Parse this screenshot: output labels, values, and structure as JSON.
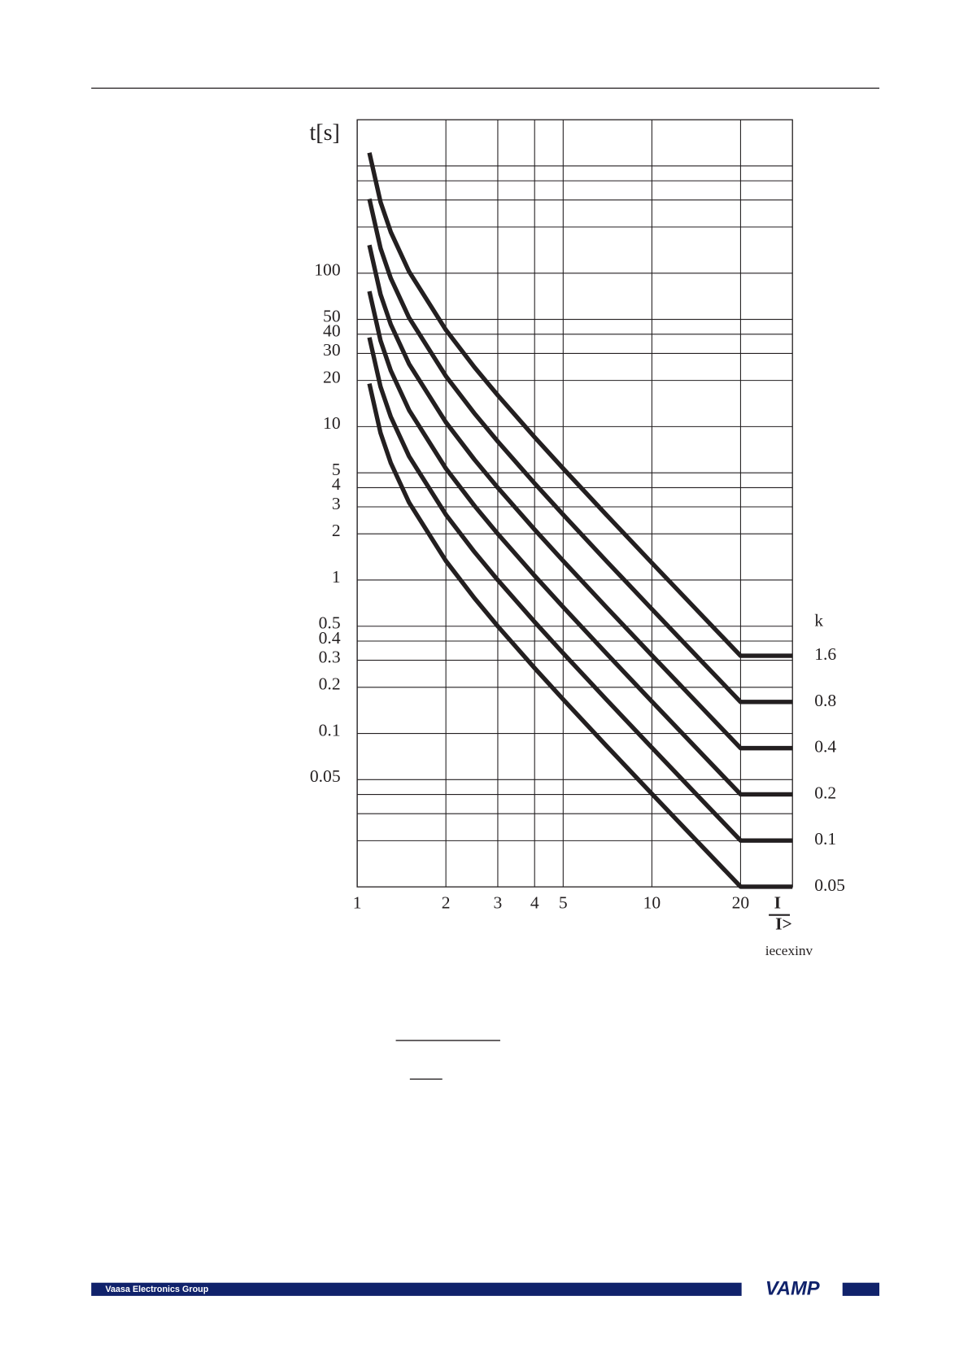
{
  "chart_data": {
    "type": "line",
    "y_label": "t[s]",
    "x_label": {
      "numerator": "I",
      "denominator": "I>"
    },
    "legend_title": "k",
    "figure_label": "iecexinv",
    "log_x": true,
    "log_y": true,
    "grid": true,
    "xlim": [
      1,
      30
    ],
    "ylim": [
      0.01,
      1000
    ],
    "xticks": [
      1,
      2,
      3,
      4,
      5,
      10,
      20
    ],
    "yticks": [
      100,
      50,
      40,
      30,
      20,
      10,
      5,
      4,
      3,
      2,
      1,
      0.5,
      0.4,
      0.3,
      0.2,
      0.1,
      0.05
    ],
    "y_minor_grid": [
      500,
      400,
      300,
      200,
      0.04,
      0.03,
      0.02
    ],
    "x": [
      1.1,
      1.2,
      1.3,
      1.5,
      2,
      2.5,
      3,
      4,
      5,
      7,
      10,
      15,
      20,
      30
    ],
    "series": [
      {
        "name": "1.6",
        "color": "#231f20",
        "values": [
          609.5,
          290.9,
          185.5,
          102.4,
          42.67,
          24.38,
          16,
          8.533,
          5.333,
          2.667,
          1.293,
          0.5714,
          0.3208,
          0.3208
        ]
      },
      {
        "name": "0.8",
        "color": "#231f20",
        "values": [
          304.8,
          145.5,
          92.75,
          51.2,
          21.33,
          12.19,
          8,
          4.267,
          2.667,
          1.333,
          0.6465,
          0.2857,
          0.1604,
          0.1604
        ]
      },
      {
        "name": "0.4",
        "color": "#231f20",
        "values": [
          152.4,
          72.73,
          46.38,
          25.6,
          10.67,
          6.095,
          4,
          2.133,
          1.333,
          0.6667,
          0.3232,
          0.1429,
          0.0802,
          0.0802
        ]
      },
      {
        "name": "0.2",
        "color": "#231f20",
        "values": [
          76.19,
          36.36,
          23.19,
          12.8,
          5.333,
          3.048,
          2,
          1.067,
          0.6667,
          0.3333,
          0.1616,
          0.07143,
          0.0401,
          0.0401
        ]
      },
      {
        "name": "0.1",
        "color": "#231f20",
        "values": [
          38.1,
          18.18,
          11.59,
          6.4,
          2.667,
          1.524,
          1,
          0.5333,
          0.3333,
          0.1667,
          0.0808,
          0.03571,
          0.02005,
          0.02005
        ]
      },
      {
        "name": "0.05",
        "color": "#231f20",
        "values": [
          19.05,
          9.091,
          5.797,
          3.2,
          1.333,
          0.7619,
          0.5,
          0.2667,
          0.1667,
          0.08333,
          0.0404,
          0.01786,
          0.01003,
          0.01003
        ]
      }
    ]
  },
  "footer": {
    "company": "Vaasa Electronics Group",
    "logo": "VAMP"
  }
}
